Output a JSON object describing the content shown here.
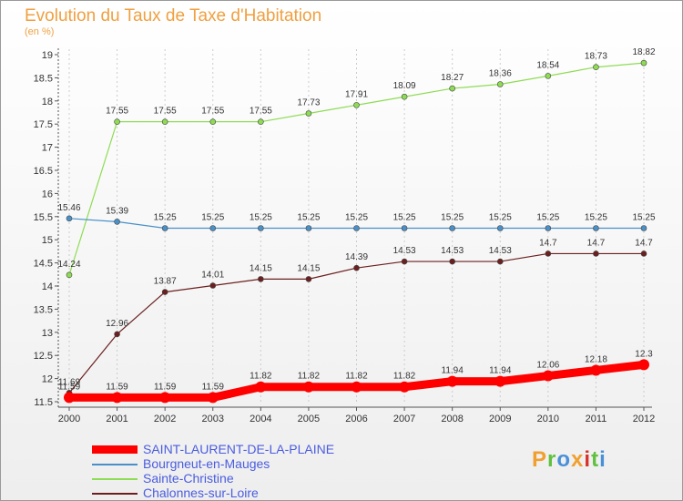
{
  "chart_data": {
    "type": "line",
    "title": "Evolution du Taux de Taxe d'Habitation",
    "subtitle": "(en %)",
    "xlabel": "",
    "ylabel": "",
    "ylim": [
      11.5,
      19
    ],
    "yticks": [
      "11.5",
      "12",
      "12.5",
      "13",
      "13.5",
      "14",
      "14.5",
      "15",
      "15.5",
      "16",
      "16.5",
      "17",
      "17.5",
      "18",
      "18.5",
      "19"
    ],
    "categories": [
      "2000",
      "2001",
      "2002",
      "2003",
      "2004",
      "2005",
      "2006",
      "2007",
      "2008",
      "2009",
      "2010",
      "2011",
      "2012"
    ],
    "grid": "vertical dashed",
    "legend_position": "bottom-left",
    "series": [
      {
        "name": "SAINT-LAURENT-DE-LA-PLAINE",
        "color": "#ff0000",
        "values": [
          11.59,
          11.59,
          11.59,
          11.59,
          11.82,
          11.82,
          11.82,
          11.82,
          11.94,
          11.94,
          12.06,
          12.18,
          12.3
        ]
      },
      {
        "name": "Bourgneut-en-Mauges",
        "color": "#4a90c8",
        "values": [
          15.46,
          15.39,
          15.25,
          15.25,
          15.25,
          15.25,
          15.25,
          15.25,
          15.25,
          15.25,
          15.25,
          15.25,
          15.25
        ]
      },
      {
        "name": "Sainte-Christine",
        "color": "#8edc54",
        "values": [
          14.24,
          17.55,
          17.55,
          17.55,
          17.55,
          17.73,
          17.91,
          18.09,
          18.27,
          18.36,
          18.54,
          18.73,
          18.82
        ]
      },
      {
        "name": "Chalonnes-sur-Loire",
        "color": "#6b1f1f",
        "values": [
          11.69,
          12.96,
          13.87,
          14.01,
          14.15,
          14.15,
          14.39,
          14.53,
          14.53,
          14.53,
          14.7,
          14.7,
          14.7
        ]
      }
    ]
  },
  "logo": {
    "text": "Proxiti",
    "colors": [
      "#f0a030",
      "#60c040",
      "#4a90d8",
      "#f0a030",
      "#d8302c",
      "#60c040",
      "#4a90d8"
    ]
  }
}
